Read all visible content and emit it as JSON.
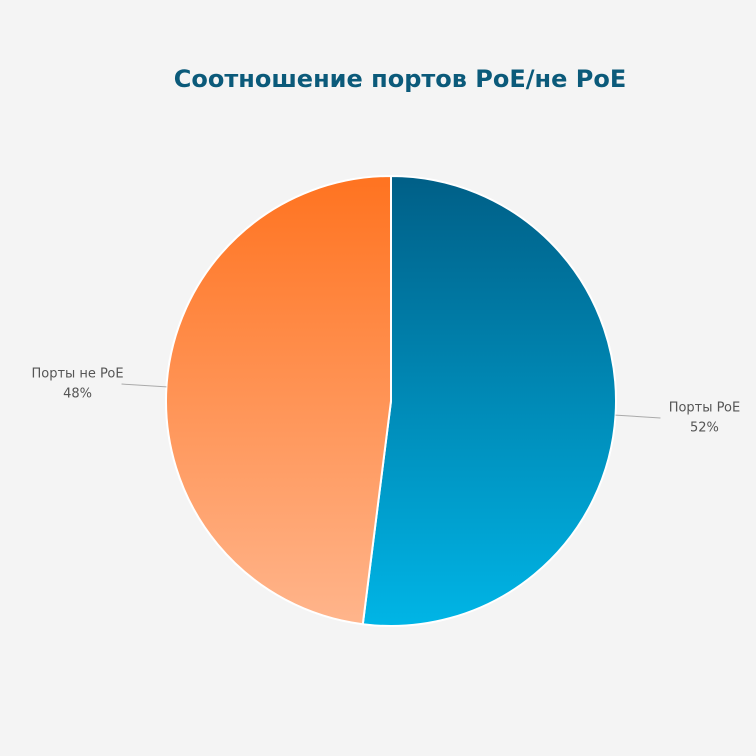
{
  "chart_data": {
    "type": "pie",
    "title": "Соотношение портов PoE/не PoE",
    "categories": [
      "Порты PoE",
      "Порты не PoE"
    ],
    "values": [
      52,
      48
    ],
    "value_labels": [
      "52%",
      "48%"
    ],
    "colors": [
      [
        "#005f87",
        "#00b5e6"
      ],
      [
        "#ff7320",
        "#ffb58c"
      ]
    ]
  }
}
